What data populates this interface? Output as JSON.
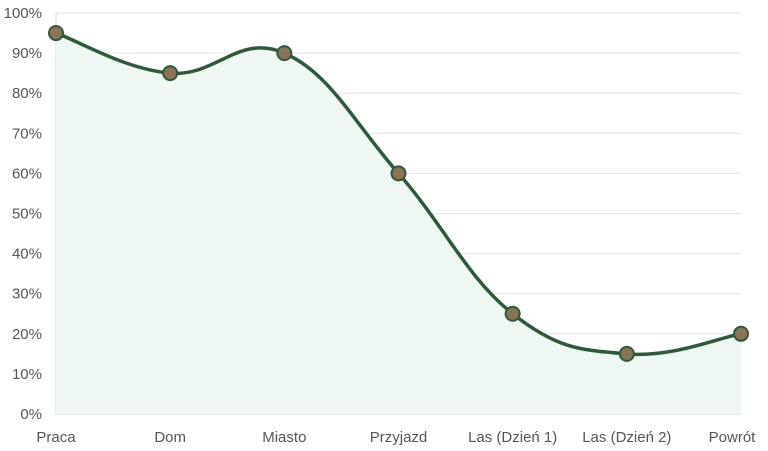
{
  "chart_data": {
    "type": "area",
    "title": "",
    "xlabel": "",
    "ylabel": "",
    "categories": [
      "Praca",
      "Dom",
      "Miasto",
      "Przyjazd",
      "Las (Dzień 1)",
      "Las (Dzień 2)",
      "Powrót"
    ],
    "series": [
      {
        "name": "",
        "values": [
          95,
          85,
          90,
          60,
          25,
          15,
          20
        ]
      }
    ],
    "ylim": [
      0,
      100
    ],
    "yticks": [
      "0%",
      "10%",
      "20%",
      "30%",
      "40%",
      "50%",
      "60%",
      "70%",
      "80%",
      "90%",
      "100%"
    ],
    "grid": true,
    "legend": "none",
    "colors": {
      "line": "#2d5a3d",
      "fill": "#eef7f1",
      "point_fill": "#8b7355",
      "point_stroke": "#2d5a3d",
      "grid": "#e3e3e3",
      "axis": "#cfd8dc"
    }
  }
}
